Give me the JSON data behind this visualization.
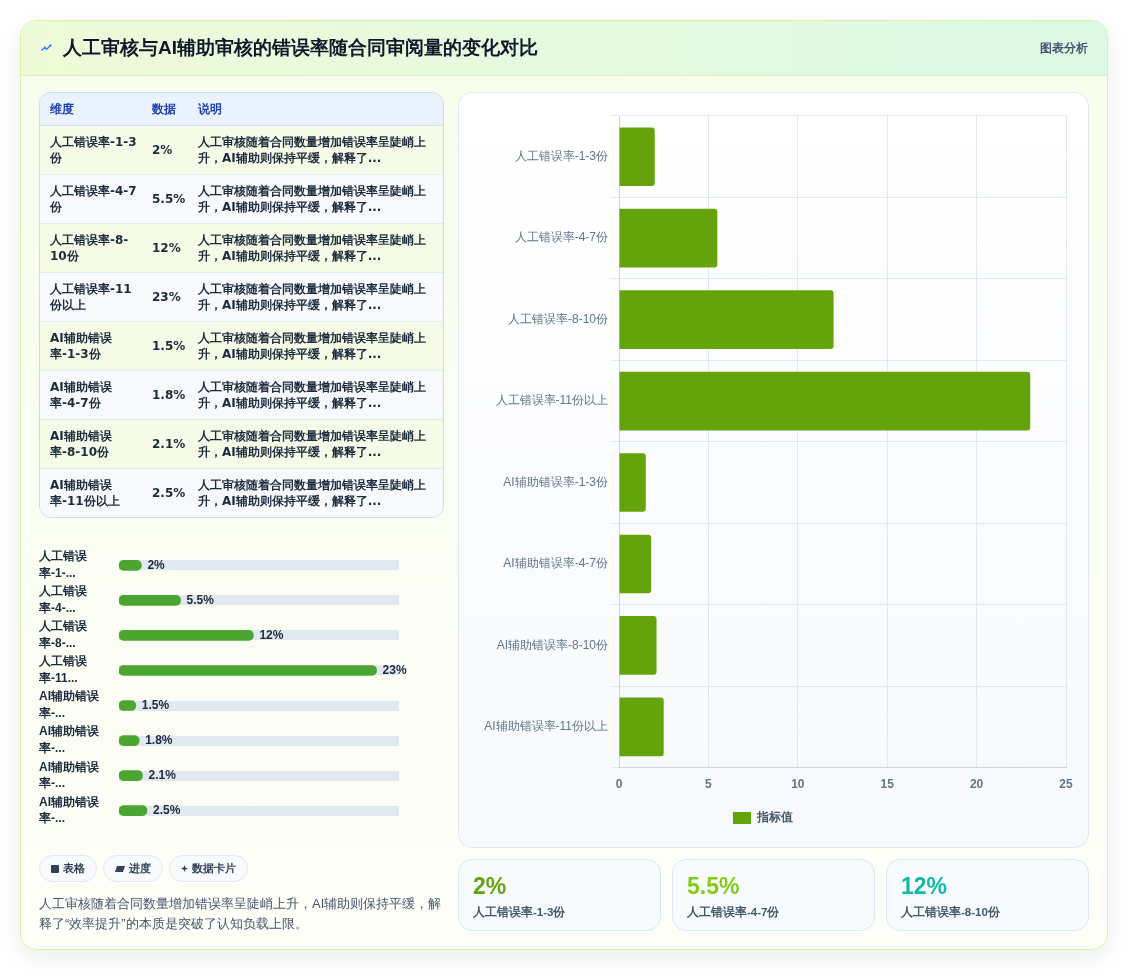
{
  "chart_data": [
    {
      "type": "other",
      "title": "人工审核与AI辅助审核的错误率随合同审阅量的变化对比",
      "categories": [
        "人工错误率-1-3份",
        "人工错误率-4-7份",
        "人工错误率-8-10份",
        "人工错误率-11份以上",
        "AI辅助错误率-1-3份",
        "AI辅助错误率-4-7份",
        "AI辅助错误率-8-10份",
        "AI辅助错误率-11份以上"
      ],
      "value_labels": [
        "2%",
        "5.5%",
        "12%",
        "23%",
        "1.5%",
        "1.8%",
        "2.1%",
        "2.5%"
      ],
      "annotations": [
        "维度",
        "数据",
        "说明",
        "人工审核随着合同数量增加错误率呈陡峭上升，AI辅助则保持平缓，解释了...",
        "人工审核随着合同数量增加错误率呈陡峭上升，AI辅助则保持平缓，解释了...",
        "人工审核随着合同数量增加错误率呈陡峭上升，AI辅助则保持平缓，解释了...",
        "人工审核随着合同数量增加错误率呈陡峭上升，AI辅助则保持平缓，解释了...",
        "人工审核随着合同数量增加错误率呈陡峭上升，AI辅助则保持平缓，解释了...",
        "人工审核随着合同数量增加错误率呈陡峭上升，AI辅助则保持平缓，解释了...",
        "人工审核随着合同数量增加错误率呈陡峭上升，AI辅助则保持平缓，解释了...",
        "人工审核随着合同数量增加错误率呈陡峭上升，AI辅助则保持平缓，解释了..."
      ]
    },
    {
      "type": "bar",
      "orientation": "horizontal",
      "categories": [
        "人工错误率-1-...",
        "人工错误率-4-...",
        "人工错误率-8-...",
        "人工错误率-11...",
        "AI辅助错误率-...",
        "AI辅助错误率-...",
        "AI辅助错误率-...",
        "AI辅助错误率-..."
      ],
      "values": [
        2,
        5.5,
        12,
        23,
        1.5,
        1.8,
        2.1,
        2.5
      ],
      "value_labels": [
        "2%",
        "5.5%",
        "12%",
        "23%",
        "1.5%",
        "1.8%",
        "2.1%",
        "2.5%"
      ],
      "color": "#4aa630",
      "grid": "y",
      "tick_labels": "y"
    },
    {
      "type": "other",
      "annotations": [
        "表格",
        "进度",
        "数据卡片",
        "人工审核随着合同数量增加错误率呈陡峭上升，AI辅助则保持平缓，解释了“效率提升”的本质是突破了认知负载上限。"
      ]
    },
    {
      "type": "bar",
      "title": "图表分析",
      "orientation": "horizontal",
      "categories": [
        "人工错误率-1-3份",
        "人工错误率-4-7份",
        "人工错误率-8-10份",
        "人工错误率-11份以上",
        "AI辅助错误率-1-3份",
        "AI辅助错误率-4-7份",
        "AI辅助错误率-8-10份",
        "AI辅助错误率-11份以上"
      ],
      "series": [
        {
          "name": "指标值",
          "color": "#65a30d",
          "values": [
            2,
            5.5,
            12,
            23,
            1.5,
            1.8,
            2.1,
            2.5
          ]
        }
      ],
      "xlim": [
        0,
        25
      ],
      "xticks": [
        0,
        5,
        10,
        15,
        20,
        25
      ],
      "grid": true,
      "legend": "bottom"
    },
    {
      "type": "other",
      "categories": [
        "人工错误率-1-3份",
        "人工错误率-4-7份",
        "人工错误率-8-10份"
      ],
      "value_labels": [
        "2%",
        "5.5%",
        "12%"
      ]
    }
  ]
}
